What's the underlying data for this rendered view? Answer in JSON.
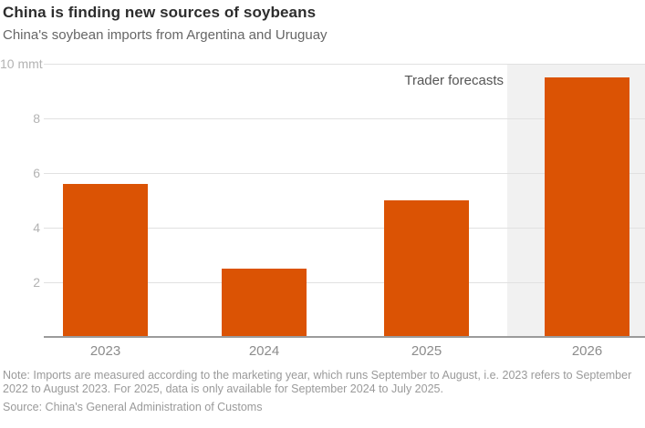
{
  "header": {
    "title": "China is finding new sources of soybeans",
    "subtitle": "China's soybean imports from Argentina and Uruguay"
  },
  "chart_data": {
    "type": "bar",
    "title": "China is finding new sources of soybeans",
    "subtitle": "China's soybean imports from Argentina and Uruguay",
    "categories": [
      "2023",
      "2024",
      "2025",
      "2026"
    ],
    "values": [
      5.6,
      2.5,
      5.0,
      9.5
    ],
    "unit": "mmt",
    "xlabel": "",
    "ylabel": "mmt",
    "ylim": [
      0,
      10
    ],
    "yticks": [
      {
        "value": 2,
        "label": "2"
      },
      {
        "value": 4,
        "label": "4"
      },
      {
        "value": 6,
        "label": "6"
      },
      {
        "value": 8,
        "label": "8"
      },
      {
        "value": 10,
        "label": "10 mmt"
      }
    ],
    "grid": "horizontal",
    "legend": "none",
    "annotation": "Trader forecasts",
    "forecast_categories": [
      "2026"
    ],
    "bar_color": "#DB5304",
    "forecast_band_color": "#F1F1F1",
    "gridline_color": "#E1E1E1",
    "axis_line_color": "#9B9B9B"
  },
  "footer": {
    "note": "Note: Imports are measured according to the marketing year, which runs September to August, i.e. 2023 refers to September 2022 to August 2023. For 2025, data is only available for September 2024 to July 2025.",
    "source": "Source: China's General Administration of Customs"
  }
}
